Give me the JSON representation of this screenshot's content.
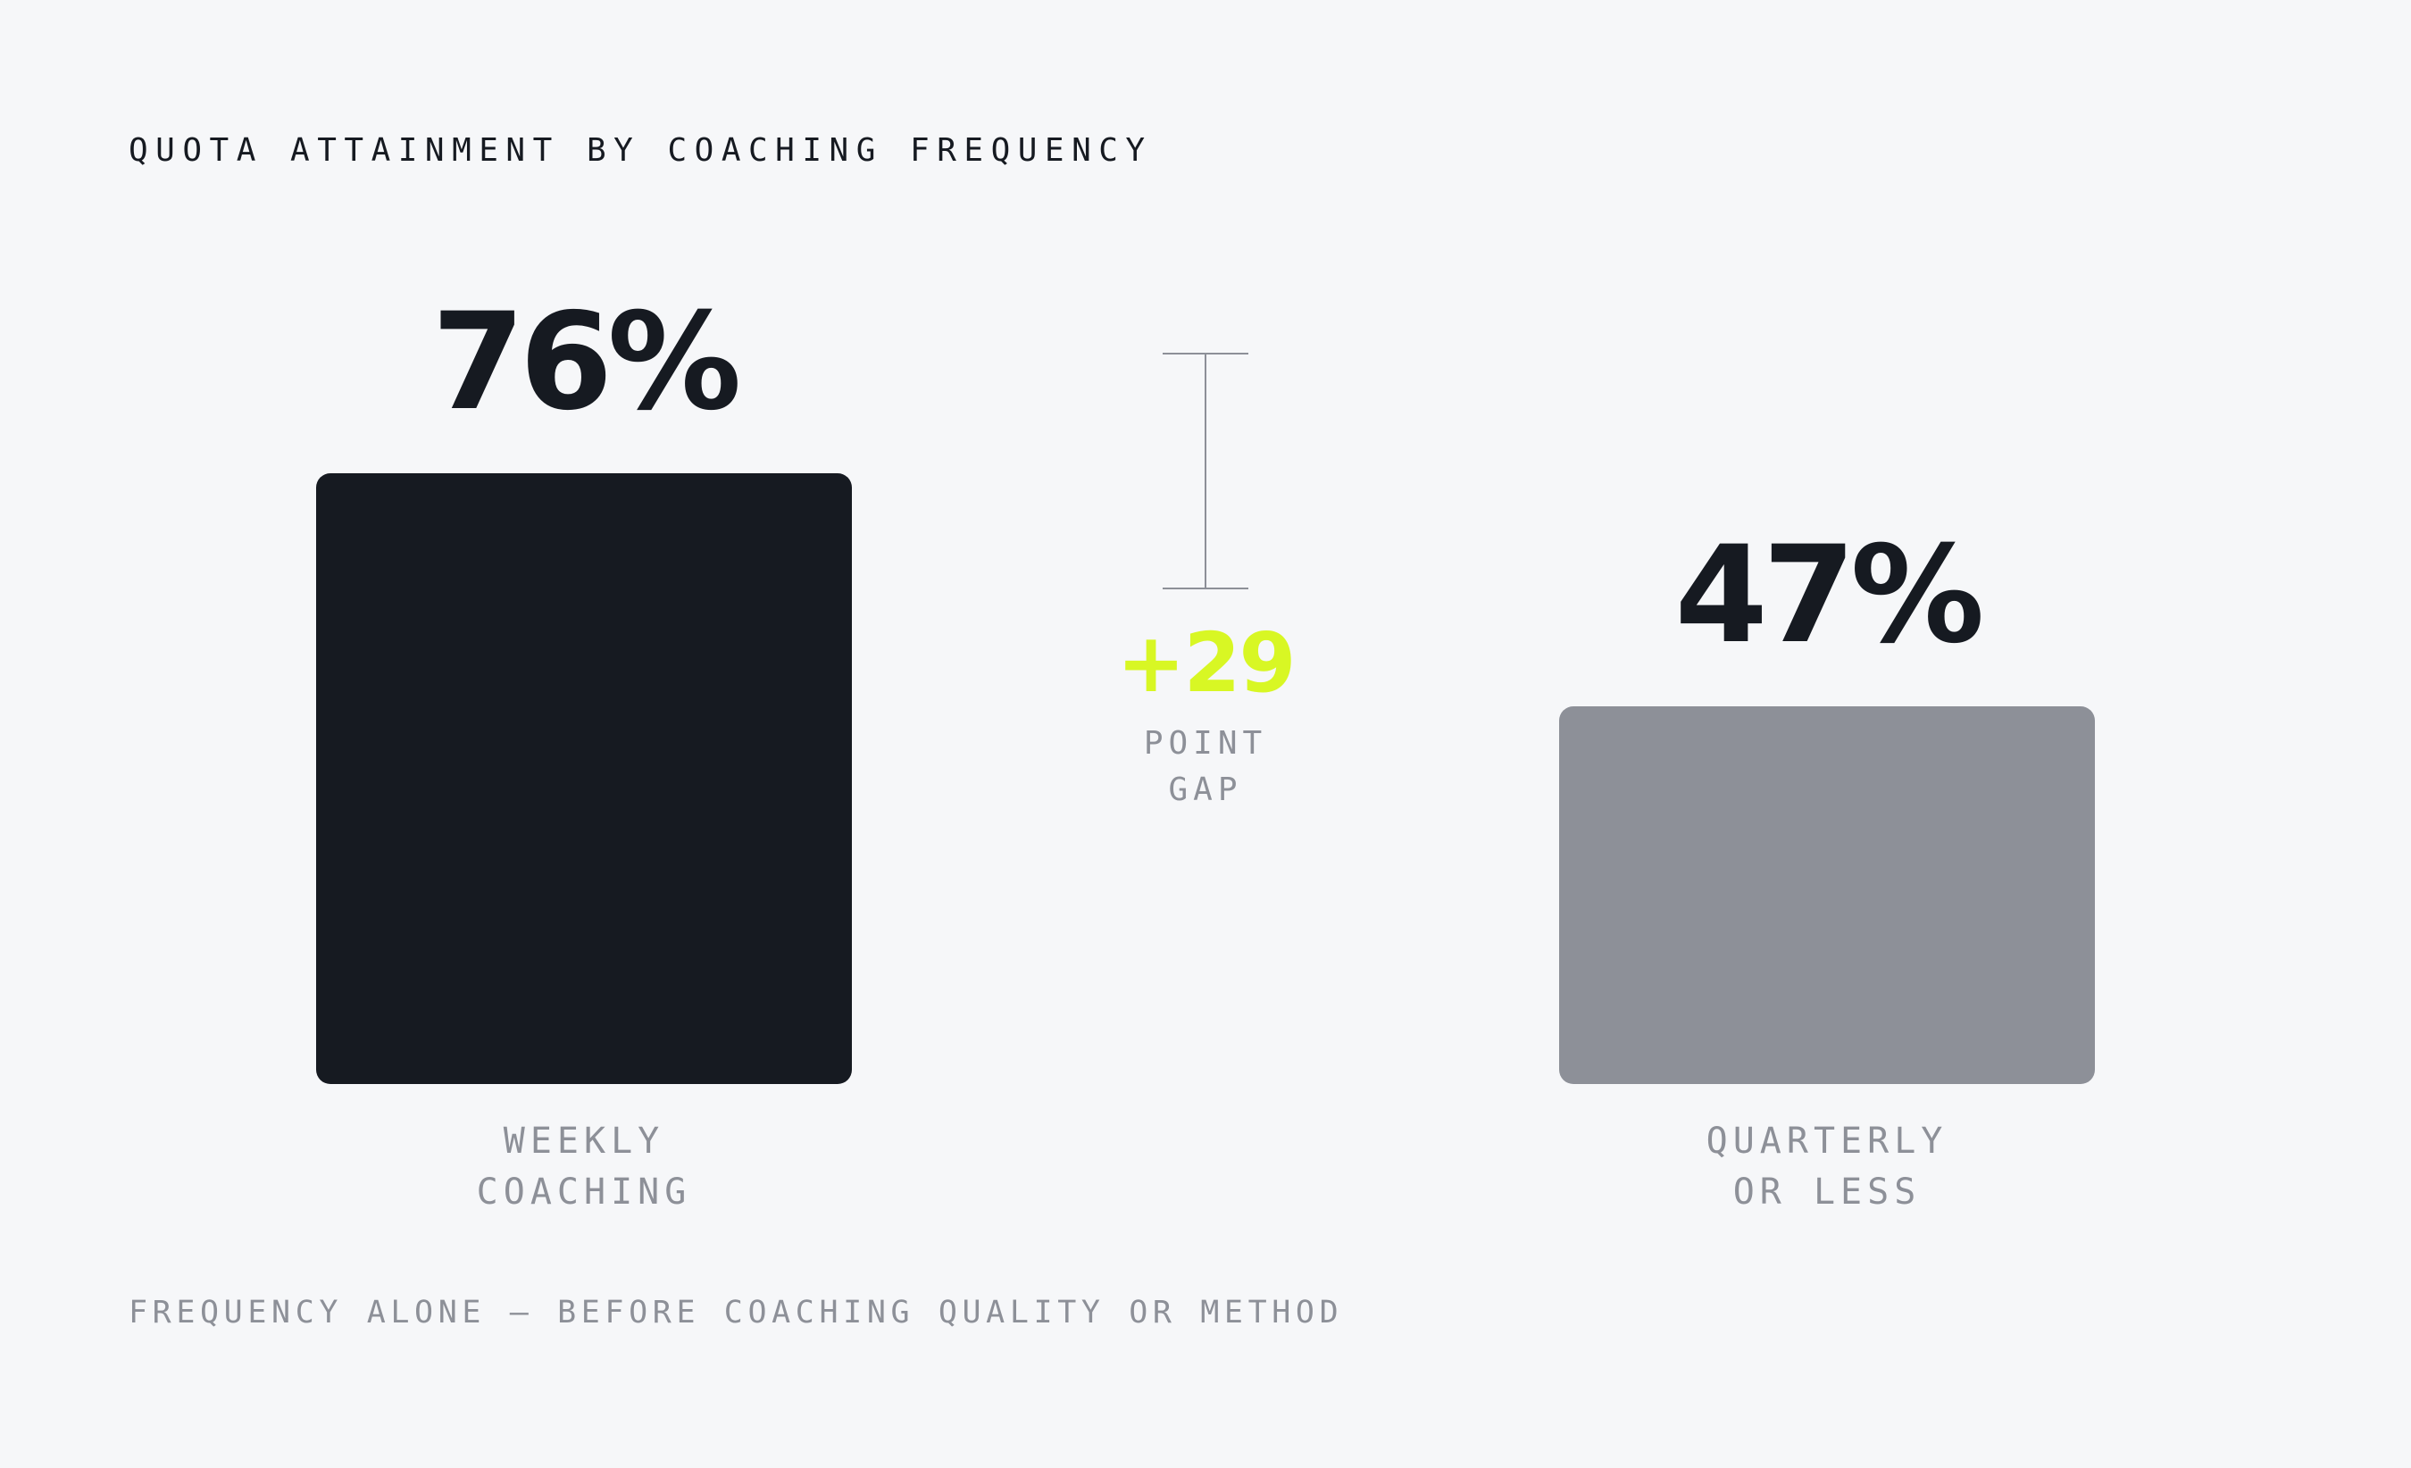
{
  "chart_data": {
    "type": "bar",
    "title": "QUOTA ATTAINMENT BY COACHING FREQUENCY",
    "unit": "%",
    "ylim": [
      0,
      100
    ],
    "grid": false,
    "legend": "none",
    "categories": [
      {
        "name": "WEEKLY COACHING",
        "lines": [
          "WEEKLY",
          "COACHING"
        ],
        "value": 76,
        "value_label": "76%",
        "color": "#161a21"
      },
      {
        "name": "QUARTERLY OR LESS",
        "lines": [
          "QUARTERLY",
          "OR LESS"
        ],
        "value": 47,
        "value_label": "47%",
        "color": "#8d9098"
      }
    ],
    "annotation": {
      "value": 29,
      "label": "+29",
      "caption_lines": [
        "POINT",
        "GAP"
      ],
      "color": "#d8f724",
      "bracket_color": "#8d9098"
    },
    "footnote": "FREQUENCY ALONE — BEFORE COACHING QUALITY OR METHOD"
  }
}
